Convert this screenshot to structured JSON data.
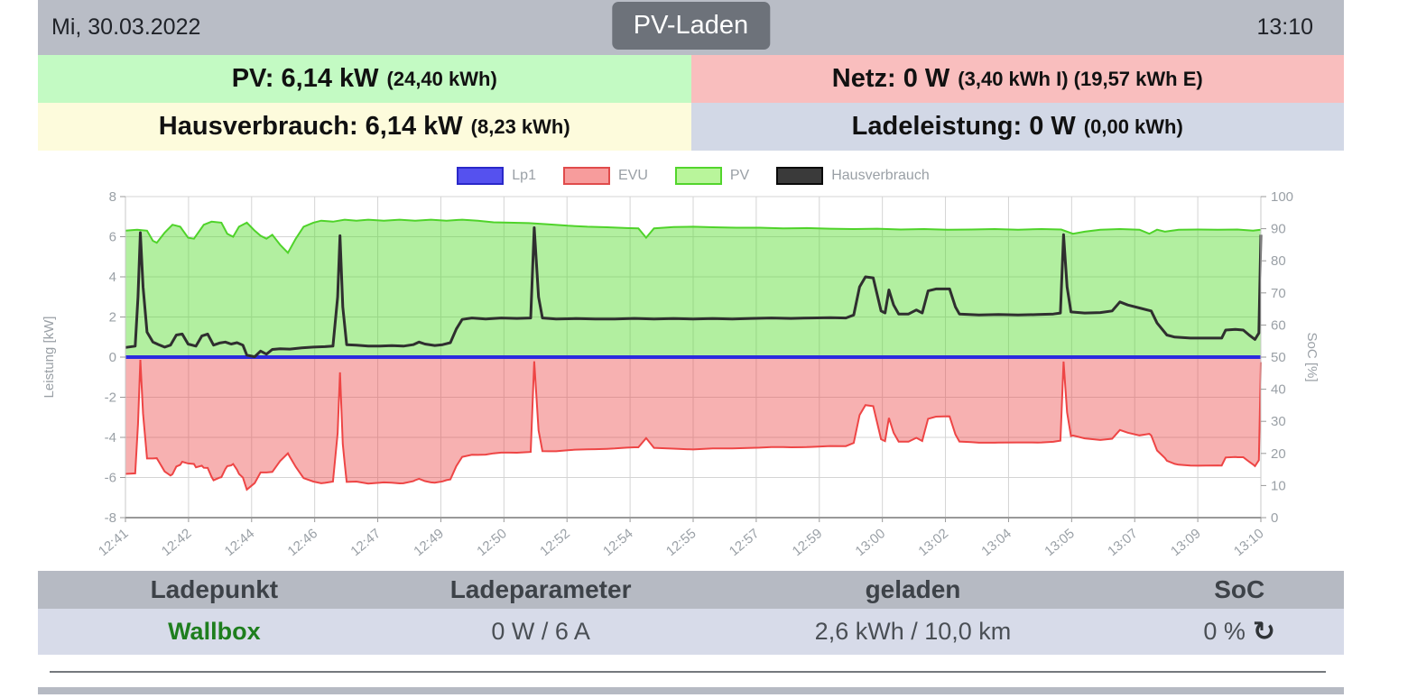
{
  "topbar": {
    "date": "Mi, 30.03.2022",
    "mode_badge": "PV-Laden",
    "time": "13:10"
  },
  "stats": {
    "pv": {
      "label": "PV:",
      "value": "6,14 kW",
      "detail": "(24,40 kWh)",
      "bg": "#c3fac3"
    },
    "netz": {
      "label": "Netz:",
      "value": "0 W",
      "detail": "(3,40 kWh I) (19,57 kWh E)",
      "bg": "#f9bebe"
    },
    "hausverbrauch": {
      "label": "Hausverbrauch:",
      "value": "6,14 kW",
      "detail": "(8,23 kWh)",
      "bg": "#fdfbdc"
    },
    "ladeleistung": {
      "label": "Ladeleistung:",
      "value": "0 W",
      "detail": "(0,00 kWh)",
      "bg": "#d2d8e6"
    }
  },
  "chart_data": {
    "type": "area",
    "x_unit": "minutes after 12:41",
    "x_range_minutes": [
      0,
      29
    ],
    "x_tick_labels": [
      "12:41",
      "12:42",
      "12:44",
      "12:46",
      "12:47",
      "12:49",
      "12:50",
      "12:52",
      "12:54",
      "12:55",
      "12:57",
      "12:59",
      "13:00",
      "13:02",
      "13:04",
      "13:05",
      "13:07",
      "13:09",
      "13:10"
    ],
    "y_left": {
      "label": "Leistung [kW]",
      "min": -8,
      "max": 8,
      "tick_step": 2
    },
    "y_right": {
      "label": "SoC [%]",
      "min": 0,
      "max": 100,
      "tick_step": 10
    },
    "grid": true,
    "legend_position": "top-center",
    "legend": [
      {
        "name": "Lp1",
        "fill": "#5551ef",
        "border": "#2a28c9"
      },
      {
        "name": "EVU",
        "fill": "#f79c9c",
        "border": "#e04b4b"
      },
      {
        "name": "PV",
        "fill": "#b9f59b",
        "border": "#52d52c"
      },
      {
        "name": "Hausverbrauch",
        "fill": "#3a3a3a",
        "border": "#0a0a0a"
      }
    ],
    "series": [
      {
        "name": "Lp1",
        "type": "line",
        "color": "#2b2bdf",
        "width": 4,
        "points": [
          [
            0,
            0
          ],
          [
            29,
            0
          ]
        ]
      },
      {
        "name": "PV",
        "type": "area",
        "line_color": "#4fd32a",
        "fill_color": "rgba(85,220,45,0.45)",
        "points": [
          [
            0,
            6.3
          ],
          [
            0.3,
            6.35
          ],
          [
            0.55,
            6.3
          ],
          [
            0.7,
            5.8
          ],
          [
            0.8,
            5.7
          ],
          [
            1.0,
            6.2
          ],
          [
            1.2,
            6.6
          ],
          [
            1.4,
            6.5
          ],
          [
            1.6,
            5.95
          ],
          [
            1.75,
            5.9
          ],
          [
            2.0,
            6.6
          ],
          [
            2.2,
            6.75
          ],
          [
            2.45,
            6.7
          ],
          [
            2.6,
            6.15
          ],
          [
            2.75,
            6.0
          ],
          [
            2.9,
            6.5
          ],
          [
            3.1,
            6.7
          ],
          [
            3.3,
            6.3
          ],
          [
            3.45,
            6.05
          ],
          [
            3.6,
            5.9
          ],
          [
            3.75,
            6.1
          ],
          [
            3.95,
            5.6
          ],
          [
            4.15,
            5.2
          ],
          [
            4.35,
            5.9
          ],
          [
            4.55,
            6.5
          ],
          [
            4.8,
            6.7
          ],
          [
            5.0,
            6.8
          ],
          [
            5.3,
            6.75
          ],
          [
            5.6,
            6.85
          ],
          [
            5.9,
            6.8
          ],
          [
            6.2,
            6.85
          ],
          [
            6.6,
            6.8
          ],
          [
            7.0,
            6.85
          ],
          [
            7.4,
            6.8
          ],
          [
            7.8,
            6.85
          ],
          [
            8.2,
            6.8
          ],
          [
            8.6,
            6.85
          ],
          [
            9.0,
            6.8
          ],
          [
            9.4,
            6.72
          ],
          [
            9.8,
            6.7
          ],
          [
            10.3,
            6.68
          ],
          [
            10.8,
            6.62
          ],
          [
            11.3,
            6.55
          ],
          [
            11.8,
            6.5
          ],
          [
            12.3,
            6.47
          ],
          [
            12.8,
            6.43
          ],
          [
            13.1,
            6.42
          ],
          [
            13.3,
            5.95
          ],
          [
            13.5,
            6.42
          ],
          [
            14.0,
            6.48
          ],
          [
            14.5,
            6.5
          ],
          [
            15.0,
            6.47
          ],
          [
            15.6,
            6.45
          ],
          [
            16.2,
            6.45
          ],
          [
            16.8,
            6.42
          ],
          [
            17.4,
            6.43
          ],
          [
            18.0,
            6.4
          ],
          [
            18.6,
            6.38
          ],
          [
            19.2,
            6.4
          ],
          [
            19.8,
            6.36
          ],
          [
            20.4,
            6.38
          ],
          [
            21.0,
            6.35
          ],
          [
            21.6,
            6.36
          ],
          [
            22.2,
            6.38
          ],
          [
            22.8,
            6.35
          ],
          [
            23.4,
            6.38
          ],
          [
            23.9,
            6.36
          ],
          [
            24.2,
            6.15
          ],
          [
            24.5,
            6.25
          ],
          [
            24.9,
            6.35
          ],
          [
            25.4,
            6.38
          ],
          [
            25.9,
            6.35
          ],
          [
            26.15,
            6.15
          ],
          [
            26.35,
            6.35
          ],
          [
            26.55,
            6.25
          ],
          [
            26.9,
            6.35
          ],
          [
            27.4,
            6.36
          ],
          [
            27.9,
            6.35
          ],
          [
            28.4,
            6.36
          ],
          [
            28.8,
            6.3
          ],
          [
            29,
            6.35
          ]
        ]
      },
      {
        "name": "EVU",
        "type": "area",
        "line_color": "#ee4545",
        "fill_color": "rgba(235,70,70,0.42)",
        "derived": "min(0, Hausverbrauch - PV)",
        "points": []
      },
      {
        "name": "Hausverbrauch",
        "type": "line",
        "color": "#2f2f2f",
        "width": 3,
        "points": [
          [
            0,
            0.48
          ],
          [
            0.25,
            0.55
          ],
          [
            0.32,
            3.0
          ],
          [
            0.38,
            6.2
          ],
          [
            0.45,
            3.5
          ],
          [
            0.55,
            1.25
          ],
          [
            0.7,
            0.75
          ],
          [
            0.85,
            0.62
          ],
          [
            1.0,
            0.5
          ],
          [
            1.15,
            0.6
          ],
          [
            1.3,
            1.1
          ],
          [
            1.45,
            1.15
          ],
          [
            1.6,
            0.65
          ],
          [
            1.8,
            0.55
          ],
          [
            1.95,
            1.05
          ],
          [
            2.1,
            1.15
          ],
          [
            2.25,
            0.6
          ],
          [
            2.4,
            0.7
          ],
          [
            2.55,
            0.75
          ],
          [
            2.7,
            0.65
          ],
          [
            2.85,
            0.72
          ],
          [
            3.0,
            0.6
          ],
          [
            3.1,
            0.1
          ],
          [
            3.3,
            0.02
          ],
          [
            3.45,
            0.3
          ],
          [
            3.6,
            0.15
          ],
          [
            3.75,
            0.38
          ],
          [
            3.95,
            0.42
          ],
          [
            4.2,
            0.4
          ],
          [
            4.5,
            0.46
          ],
          [
            4.8,
            0.5
          ],
          [
            5.1,
            0.52
          ],
          [
            5.3,
            0.55
          ],
          [
            5.42,
            3.0
          ],
          [
            5.48,
            6.05
          ],
          [
            5.55,
            2.5
          ],
          [
            5.65,
            0.62
          ],
          [
            5.9,
            0.6
          ],
          [
            6.2,
            0.55
          ],
          [
            6.5,
            0.55
          ],
          [
            6.8,
            0.57
          ],
          [
            7.1,
            0.55
          ],
          [
            7.35,
            0.62
          ],
          [
            7.5,
            0.75
          ],
          [
            7.65,
            0.65
          ],
          [
            7.9,
            0.58
          ],
          [
            8.1,
            0.62
          ],
          [
            8.3,
            0.72
          ],
          [
            8.45,
            1.4
          ],
          [
            8.6,
            1.88
          ],
          [
            8.85,
            1.95
          ],
          [
            9.2,
            1.9
          ],
          [
            9.6,
            1.95
          ],
          [
            10.0,
            1.93
          ],
          [
            10.35,
            1.95
          ],
          [
            10.44,
            6.45
          ],
          [
            10.55,
            3.0
          ],
          [
            10.65,
            1.95
          ],
          [
            11.0,
            1.9
          ],
          [
            11.5,
            1.92
          ],
          [
            12.0,
            1.9
          ],
          [
            12.5,
            1.9
          ],
          [
            13.0,
            1.93
          ],
          [
            13.5,
            1.9
          ],
          [
            14.0,
            1.92
          ],
          [
            14.5,
            1.9
          ],
          [
            15.0,
            1.92
          ],
          [
            15.5,
            1.9
          ],
          [
            16.0,
            1.93
          ],
          [
            16.5,
            1.95
          ],
          [
            17.0,
            1.93
          ],
          [
            17.5,
            1.95
          ],
          [
            18.0,
            1.97
          ],
          [
            18.4,
            1.95
          ],
          [
            18.6,
            2.1
          ],
          [
            18.75,
            3.5
          ],
          [
            18.9,
            4.0
          ],
          [
            19.1,
            3.95
          ],
          [
            19.3,
            2.3
          ],
          [
            19.4,
            2.2
          ],
          [
            19.5,
            3.35
          ],
          [
            19.62,
            2.6
          ],
          [
            19.75,
            2.15
          ],
          [
            20.0,
            2.15
          ],
          [
            20.2,
            2.35
          ],
          [
            20.35,
            2.2
          ],
          [
            20.5,
            3.3
          ],
          [
            20.7,
            3.4
          ],
          [
            21.05,
            3.4
          ],
          [
            21.2,
            2.5
          ],
          [
            21.3,
            2.15
          ],
          [
            21.8,
            2.1
          ],
          [
            22.3,
            2.12
          ],
          [
            22.8,
            2.1
          ],
          [
            23.3,
            2.12
          ],
          [
            23.7,
            2.15
          ],
          [
            23.88,
            2.2
          ],
          [
            23.96,
            6.1
          ],
          [
            24.05,
            3.5
          ],
          [
            24.15,
            2.25
          ],
          [
            24.5,
            2.2
          ],
          [
            24.9,
            2.22
          ],
          [
            25.2,
            2.3
          ],
          [
            25.4,
            2.75
          ],
          [
            25.6,
            2.6
          ],
          [
            25.9,
            2.45
          ],
          [
            26.2,
            2.3
          ],
          [
            26.35,
            1.7
          ],
          [
            26.6,
            1.1
          ],
          [
            26.8,
            1.0
          ],
          [
            27.2,
            0.95
          ],
          [
            27.6,
            0.95
          ],
          [
            28.0,
            0.95
          ],
          [
            28.1,
            1.35
          ],
          [
            28.35,
            1.38
          ],
          [
            28.55,
            1.35
          ],
          [
            28.7,
            1.1
          ],
          [
            28.85,
            0.88
          ],
          [
            28.95,
            1.2
          ],
          [
            29,
            6.1
          ]
        ]
      }
    ]
  },
  "table": {
    "headers": [
      "Ladepunkt",
      "Ladeparameter",
      "geladen",
      "SoC"
    ],
    "row": {
      "ladepunkt": "Wallbox",
      "ladeparameter": "0 W / 6 A",
      "geladen": "2,6 kWh / 10,0 km",
      "soc": "0 %",
      "refresh_icon": "↻"
    }
  }
}
